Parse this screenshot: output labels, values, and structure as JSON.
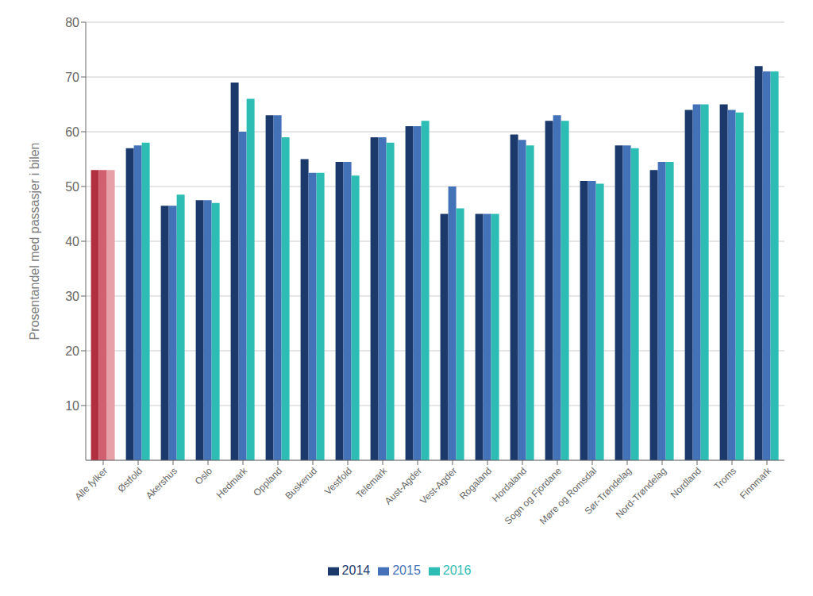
{
  "chart_data": {
    "type": "bar",
    "categories": [
      "Alle fylker",
      "Østfold",
      "Akershus",
      "Oslo",
      "Hedmark",
      "Oppland",
      "Buskerud",
      "Vestfold",
      "Telemark",
      "Aust-Agder",
      "Vest-Agder",
      "Rogaland",
      "Hordaland",
      "Sogn og Fjordane",
      "Møre og Romsdal",
      "Sør-Trøndelag",
      "Nord-Trøndelag",
      "Nordland",
      "Troms",
      "Finnmark"
    ],
    "series": [
      {
        "name": "2014",
        "color": "#1b3a6b",
        "colors": [
          "#b03040",
          "#1b3a6b",
          "#1b3a6b",
          "#1b3a6b",
          "#1b3a6b",
          "#1b3a6b",
          "#1b3a6b",
          "#1b3a6b",
          "#1b3a6b",
          "#1b3a6b",
          "#1b3a6b",
          "#1b3a6b",
          "#1b3a6b",
          "#1b3a6b",
          "#1b3a6b",
          "#1b3a6b",
          "#1b3a6b",
          "#1b3a6b",
          "#1b3a6b",
          "#1b3a6b"
        ],
        "values": [
          53,
          57,
          46.5,
          47.5,
          69,
          63,
          55,
          54.5,
          59,
          61,
          45,
          45,
          59.5,
          62,
          51,
          57.5,
          53,
          64,
          65,
          72
        ]
      },
      {
        "name": "2015",
        "color": "#4472b8",
        "colors": [
          "#d06070",
          "#4472b8",
          "#4472b8",
          "#4472b8",
          "#4472b8",
          "#4472b8",
          "#4472b8",
          "#4472b8",
          "#4472b8",
          "#4472b8",
          "#4472b8",
          "#4472b8",
          "#4472b8",
          "#4472b8",
          "#4472b8",
          "#4472b8",
          "#4472b8",
          "#4472b8",
          "#4472b8",
          "#4472b8"
        ],
        "values": [
          53,
          57.5,
          46.5,
          47.5,
          60,
          63,
          52.5,
          54.5,
          59,
          61,
          50,
          45,
          58.5,
          63,
          51,
          57.5,
          54.5,
          65,
          64,
          71
        ]
      },
      {
        "name": "2016",
        "color": "#2dbdb5",
        "colors": [
          "#e8a0a8",
          "#2dbdb5",
          "#2dbdb5",
          "#2dbdb5",
          "#2dbdb5",
          "#2dbdb5",
          "#2dbdb5",
          "#2dbdb5",
          "#2dbdb5",
          "#2dbdb5",
          "#2dbdb5",
          "#2dbdb5",
          "#2dbdb5",
          "#2dbdb5",
          "#2dbdb5",
          "#2dbdb5",
          "#2dbdb5",
          "#2dbdb5",
          "#2dbdb5",
          "#2dbdb5"
        ],
        "values": [
          53,
          58,
          48.5,
          47,
          66,
          59,
          52.5,
          52,
          58,
          62,
          46,
          45,
          57.5,
          62,
          50.5,
          57,
          54.5,
          65,
          63.5,
          71
        ]
      }
    ],
    "ylabel": "Prosentandel med passasjer i bilen",
    "ylim": [
      0,
      80
    ],
    "yticks": [
      10,
      20,
      30,
      40,
      50,
      60,
      70,
      80
    ],
    "grid": true,
    "legend": "bottom"
  }
}
